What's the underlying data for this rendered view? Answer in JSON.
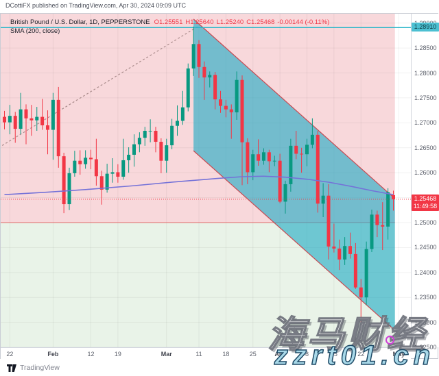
{
  "header": {
    "published_line": "DCottiFX published on TradingView.com, Apr 30, 2024 09:09 UTC"
  },
  "legend": {
    "symbol_line": "British Pound / U.S. Dollar, 1D, PEPPERSTONE",
    "open": "O1.25551",
    "high": "H1.25640",
    "low": "L1.25240",
    "close": "C1.25468",
    "change": "-0.00144 (-0.11%)",
    "indicator": "SMA (200, close)"
  },
  "axis_badges": {
    "alert_price": "1.28910",
    "last_price": "1.25468",
    "countdown": "11:49:58"
  },
  "watermark": {
    "line1": "海马财经",
    "line2": "zzrt01.cn"
  },
  "footer": {
    "brand": "TradingView"
  },
  "colors": {
    "up": "#089981",
    "down": "#f23645",
    "pink_zone": "#f8d8db",
    "green_zone": "#e9f3e8",
    "zone_boundary": "rgba(224,92,92,0.9)",
    "channel_fill": "rgba(34,171,197,0.62)",
    "channel_border": "#c84a52",
    "sma": "#7472d8",
    "alert_line": "#29b6c9",
    "last_price_line": "#f23645",
    "trendline": "#a98b8b",
    "grid": "rgba(0,0,0,0.055)"
  },
  "chart_data": {
    "type": "candlestick",
    "symbol": "British Pound / U.S. Dollar",
    "timeframe": "1D",
    "exchange": "PEPPERSTONE",
    "ylim": [
      1.22501,
      1.29188
    ],
    "ohlc_current": {
      "open": 1.25551,
      "high": 1.2564,
      "low": 1.2524,
      "close": 1.25468,
      "change": -0.00144,
      "change_pct": -0.11
    },
    "price_ticks": [
      "1.29000",
      "1.28500",
      "1.28000",
      "1.27500",
      "1.27000",
      "1.26500",
      "1.26000",
      "1.25500",
      "1.25000",
      "1.24500",
      "1.24000",
      "1.23500",
      "1.23000",
      "1.22500"
    ],
    "time_ticks": [
      {
        "label": "22",
        "index": 1,
        "major": false
      },
      {
        "label": "Feb",
        "index": 9,
        "major": true
      },
      {
        "label": "12",
        "index": 16,
        "major": false
      },
      {
        "label": "19",
        "index": 21,
        "major": false
      },
      {
        "label": "Mar",
        "index": 30,
        "major": true
      },
      {
        "label": "11",
        "index": 36,
        "major": false
      },
      {
        "label": "18",
        "index": 41,
        "major": false
      },
      {
        "label": "25",
        "index": 46,
        "major": false
      },
      {
        "label": "Apr",
        "index": 51,
        "major": true
      },
      {
        "label": "8",
        "index": 56,
        "major": false
      },
      {
        "label": "15",
        "index": 61,
        "major": false
      },
      {
        "label": "22",
        "index": 66,
        "major": false
      },
      {
        "label": "May",
        "index": 73,
        "major": true
      }
    ],
    "levels": {
      "alert": 1.2891,
      "last": 1.25468,
      "zone_boundary": 1.25
    },
    "regions": {
      "end_index": 72.6,
      "boundary_price": 1.25
    },
    "channel": {
      "start_index": 35,
      "end_index": 72.6,
      "upper_start": 1.2908,
      "upper_end": 1.2548,
      "offset": -0.0264
    },
    "trendline": {
      "start_index": -1.4,
      "start_price": 1.2646,
      "end_index": 36.4,
      "end_price": 1.2895
    },
    "sma": {
      "period": 200,
      "source": "close",
      "points": [
        [
          0,
          1.2556
        ],
        [
          8,
          1.2561
        ],
        [
          16,
          1.2567
        ],
        [
          24,
          1.2574
        ],
        [
          32,
          1.2582
        ],
        [
          40,
          1.2589
        ],
        [
          44,
          1.2592
        ],
        [
          48,
          1.2593
        ],
        [
          52,
          1.2591
        ],
        [
          56,
          1.2587
        ],
        [
          60,
          1.2581
        ],
        [
          64,
          1.2573
        ],
        [
          68,
          1.2564
        ],
        [
          72,
          1.2556
        ]
      ]
    },
    "candles": [
      [
        "Jan 19",
        1.2712,
        1.2724,
        1.2687,
        1.2701
      ],
      [
        "Jan 22",
        1.2701,
        1.2736,
        1.2677,
        1.2714
      ],
      [
        "Jan 23",
        1.2714,
        1.2722,
        1.266,
        1.2688
      ],
      [
        "Jan 24",
        1.2688,
        1.276,
        1.2677,
        1.2727
      ],
      [
        "Jan 25",
        1.2727,
        1.2737,
        1.2657,
        1.2709
      ],
      [
        "Jan 26",
        1.2709,
        1.2736,
        1.2674,
        1.2705
      ],
      [
        "Jan 29",
        1.2705,
        1.2732,
        1.2684,
        1.2712
      ],
      [
        "Jan 30",
        1.2712,
        1.2748,
        1.2686,
        1.2695
      ],
      [
        "Jan 31",
        1.2695,
        1.2725,
        1.2637,
        1.2686
      ],
      [
        "Feb 1",
        1.2686,
        1.276,
        1.2626,
        1.2746
      ],
      [
        "Feb 2",
        1.2746,
        1.2772,
        1.261,
        1.2633
      ],
      [
        "Feb 5",
        1.2633,
        1.264,
        1.2519,
        1.2537
      ],
      [
        "Feb 6",
        1.2537,
        1.261,
        1.2525,
        1.2599
      ],
      [
        "Feb 7",
        1.2599,
        1.2644,
        1.2592,
        1.2624
      ],
      [
        "Feb 8",
        1.2624,
        1.2645,
        1.2596,
        1.2617
      ],
      [
        "Feb 9",
        1.2617,
        1.2645,
        1.2608,
        1.263
      ],
      [
        "Feb 12",
        1.263,
        1.2646,
        1.2607,
        1.2627
      ],
      [
        "Feb 13",
        1.2627,
        1.2668,
        1.2574,
        1.2593
      ],
      [
        "Feb 14",
        1.2593,
        1.2604,
        1.2536,
        1.2566
      ],
      [
        "Feb 15",
        1.2566,
        1.2618,
        1.256,
        1.2598
      ],
      [
        "Feb 16",
        1.2598,
        1.2629,
        1.258,
        1.2601
      ],
      [
        "Feb 19",
        1.2601,
        1.2617,
        1.258,
        1.2592
      ],
      [
        "Feb 20",
        1.2592,
        1.2668,
        1.2586,
        1.2625
      ],
      [
        "Feb 21",
        1.2625,
        1.2651,
        1.26,
        1.2636
      ],
      [
        "Feb 22",
        1.2636,
        1.2677,
        1.2612,
        1.2657
      ],
      [
        "Feb 23",
        1.2657,
        1.2681,
        1.2641,
        1.267
      ],
      [
        "Feb 26",
        1.267,
        1.2692,
        1.2654,
        1.2684
      ],
      [
        "Feb 27",
        1.2684,
        1.2707,
        1.2661,
        1.2684
      ],
      [
        "Feb 28",
        1.2684,
        1.2692,
        1.2641,
        1.2662
      ],
      [
        "Feb 29",
        1.2662,
        1.2669,
        1.2599,
        1.2624
      ],
      [
        "Mar 1",
        1.2624,
        1.2668,
        1.26,
        1.2655
      ],
      [
        "Mar 4",
        1.2655,
        1.2708,
        1.2647,
        1.2694
      ],
      [
        "Mar 5",
        1.2694,
        1.2735,
        1.2674,
        1.2704
      ],
      [
        "Mar 6",
        1.2704,
        1.2764,
        1.2696,
        1.2731
      ],
      [
        "Mar 7",
        1.2731,
        1.2819,
        1.2723,
        1.2809
      ],
      [
        "Mar 8",
        1.2809,
        1.2893,
        1.2794,
        1.2858
      ],
      [
        "Mar 11",
        1.2858,
        1.2866,
        1.279,
        1.2812
      ],
      [
        "Mar 12",
        1.2812,
        1.2823,
        1.2746,
        1.2791
      ],
      [
        "Mar 13",
        1.2791,
        1.2803,
        1.2771,
        1.2796
      ],
      [
        "Mar 14",
        1.2796,
        1.2802,
        1.2727,
        1.2747
      ],
      [
        "Mar 15",
        1.2747,
        1.2764,
        1.272,
        1.2734
      ],
      [
        "Mar 18",
        1.2734,
        1.2746,
        1.2711,
        1.2727
      ],
      [
        "Mar 19",
        1.2727,
        1.2737,
        1.2668,
        1.2721
      ],
      [
        "Mar 20",
        1.2721,
        1.2803,
        1.2706,
        1.2786
      ],
      [
        "Mar 21",
        1.2786,
        1.2795,
        1.2575,
        1.2661
      ],
      [
        "Mar 22",
        1.2661,
        1.2669,
        1.2577,
        1.2601
      ],
      [
        "Mar 25",
        1.2601,
        1.2646,
        1.2585,
        1.2637
      ],
      [
        "Mar 26",
        1.2637,
        1.2667,
        1.2614,
        1.2624
      ],
      [
        "Mar 27",
        1.2624,
        1.2649,
        1.2616,
        1.2641
      ],
      [
        "Mar 28",
        1.2641,
        1.2646,
        1.2601,
        1.2623
      ],
      [
        "Mar 29",
        1.2623,
        1.2634,
        1.2613,
        1.2624
      ],
      [
        "Apr 1",
        1.2624,
        1.2638,
        1.2539,
        1.2542
      ],
      [
        "Apr 2",
        1.2542,
        1.2584,
        1.2518,
        1.2577
      ],
      [
        "Apr 3",
        1.2577,
        1.2668,
        1.2562,
        1.2654
      ],
      [
        "Apr 4",
        1.2654,
        1.2684,
        1.2627,
        1.2638
      ],
      [
        "Apr 5",
        1.2638,
        1.265,
        1.26,
        1.2637
      ],
      [
        "Apr 8",
        1.2637,
        1.2668,
        1.2613,
        1.2656
      ],
      [
        "Apr 9",
        1.2656,
        1.2709,
        1.2649,
        1.2676
      ],
      [
        "Apr 10",
        1.2676,
        1.2684,
        1.252,
        1.2538
      ],
      [
        "Apr 11",
        1.2538,
        1.2579,
        1.2511,
        1.2554
      ],
      [
        "Apr 12",
        1.2554,
        1.2577,
        1.2426,
        1.2452
      ],
      [
        "Apr 15",
        1.2452,
        1.2498,
        1.244,
        1.2448
      ],
      [
        "Apr 16",
        1.2448,
        1.2466,
        1.2405,
        1.2426
      ],
      [
        "Apr 17",
        1.2426,
        1.2471,
        1.2415,
        1.2453
      ],
      [
        "Apr 18",
        1.2453,
        1.248,
        1.2428,
        1.2437
      ],
      [
        "Apr 19",
        1.2437,
        1.2459,
        1.2367,
        1.237
      ],
      [
        "Apr 22",
        1.237,
        1.2387,
        1.2299,
        1.235
      ],
      [
        "Apr 23",
        1.235,
        1.2462,
        1.2335,
        1.2447
      ],
      [
        "Apr 24",
        1.2447,
        1.2526,
        1.2441,
        1.2516
      ],
      [
        "Apr 25",
        1.2516,
        1.2524,
        1.2471,
        1.2495
      ],
      [
        "Apr 26",
        1.2495,
        1.2541,
        1.2445,
        1.2492
      ],
      [
        "Apr 29",
        1.2492,
        1.2569,
        1.2466,
        1.2561
      ],
      [
        "Apr 30",
        1.25551,
        1.2564,
        1.2524,
        1.25468
      ]
    ]
  }
}
